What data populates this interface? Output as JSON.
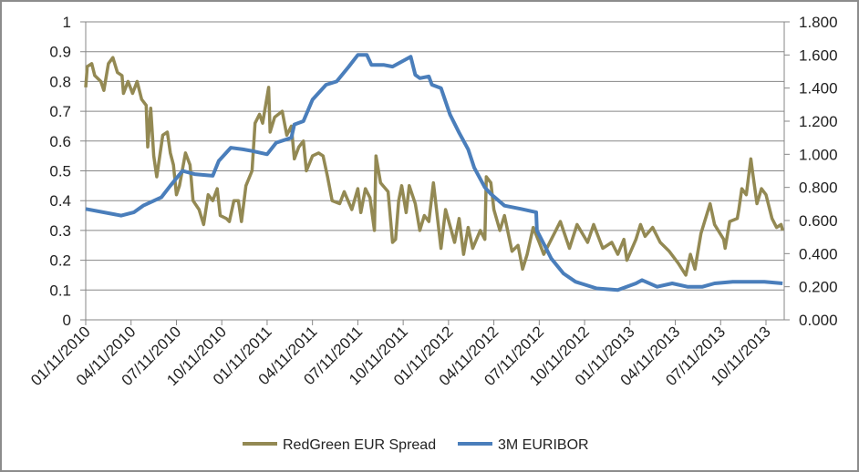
{
  "chart_data": {
    "type": "line",
    "title": "",
    "x_unit": "months since 01/11/2010",
    "x_tick_labels": [
      "01/11/2010",
      "04/11/2010",
      "07/11/2010",
      "10/11/2010",
      "01/11/2011",
      "04/11/2011",
      "07/11/2011",
      "10/11/2011",
      "01/11/2012",
      "04/11/2012",
      "07/11/2012",
      "10/11/2012",
      "01/11/2013",
      "04/11/2013",
      "07/11/2013",
      "10/11/2013"
    ],
    "x_tick_step_months": 3,
    "xlim": [
      0,
      46.2
    ],
    "left_axis": {
      "ylim": [
        0,
        1
      ],
      "step": 0.1,
      "tick_labels": [
        "0",
        "0.1",
        "0.2",
        "0.3",
        "0.4",
        "0.5",
        "0.6",
        "0.7",
        "0.8",
        "0.9",
        "1"
      ]
    },
    "right_axis": {
      "ylim": [
        0,
        1.8
      ],
      "step": 0.2,
      "tick_labels": [
        "0.000",
        "0.200",
        "0.400",
        "0.600",
        "0.800",
        "1.000",
        "1.200",
        "1.400",
        "1.600",
        "1.800"
      ]
    },
    "grid": true,
    "legend_position": "bottom",
    "series": [
      {
        "name": "RedGreen EUR Spread",
        "axis": "left",
        "color": "#938953",
        "points": [
          [
            0,
            0.78
          ],
          [
            0.1,
            0.85
          ],
          [
            0.4,
            0.86
          ],
          [
            0.6,
            0.82
          ],
          [
            1.0,
            0.8
          ],
          [
            1.2,
            0.77
          ],
          [
            1.5,
            0.86
          ],
          [
            1.8,
            0.88
          ],
          [
            2.1,
            0.83
          ],
          [
            2.4,
            0.82
          ],
          [
            2.5,
            0.76
          ],
          [
            2.8,
            0.8
          ],
          [
            3.1,
            0.76
          ],
          [
            3.4,
            0.8
          ],
          [
            3.7,
            0.74
          ],
          [
            4.0,
            0.72
          ],
          [
            4.1,
            0.58
          ],
          [
            4.3,
            0.71
          ],
          [
            4.5,
            0.55
          ],
          [
            4.7,
            0.48
          ],
          [
            4.9,
            0.55
          ],
          [
            5.1,
            0.62
          ],
          [
            5.4,
            0.63
          ],
          [
            5.6,
            0.56
          ],
          [
            5.8,
            0.52
          ],
          [
            6.0,
            0.42
          ],
          [
            6.2,
            0.45
          ],
          [
            6.6,
            0.56
          ],
          [
            6.9,
            0.52
          ],
          [
            7.1,
            0.4
          ],
          [
            7.5,
            0.37
          ],
          [
            7.8,
            0.32
          ],
          [
            8.1,
            0.42
          ],
          [
            8.4,
            0.4
          ],
          [
            8.7,
            0.44
          ],
          [
            8.9,
            0.35
          ],
          [
            9.3,
            0.34
          ],
          [
            9.5,
            0.33
          ],
          [
            9.8,
            0.4
          ],
          [
            10.1,
            0.4
          ],
          [
            10.3,
            0.33
          ],
          [
            10.6,
            0.45
          ],
          [
            11.0,
            0.5
          ],
          [
            11.2,
            0.66
          ],
          [
            11.5,
            0.69
          ],
          [
            11.7,
            0.66
          ],
          [
            12.1,
            0.78
          ],
          [
            12.2,
            0.63
          ],
          [
            12.5,
            0.68
          ],
          [
            13.0,
            0.7
          ],
          [
            13.3,
            0.62
          ],
          [
            13.6,
            0.65
          ],
          [
            13.8,
            0.54
          ],
          [
            14.1,
            0.58
          ],
          [
            14.4,
            0.6
          ],
          [
            14.6,
            0.5
          ],
          [
            15.0,
            0.55
          ],
          [
            15.4,
            0.56
          ],
          [
            15.7,
            0.55
          ],
          [
            16.0,
            0.48
          ],
          [
            16.3,
            0.4
          ],
          [
            16.8,
            0.39
          ],
          [
            17.1,
            0.43
          ],
          [
            17.6,
            0.37
          ],
          [
            18.0,
            0.44
          ],
          [
            18.2,
            0.36
          ],
          [
            18.5,
            0.44
          ],
          [
            18.8,
            0.41
          ],
          [
            19.1,
            0.3
          ],
          [
            19.2,
            0.55
          ],
          [
            19.5,
            0.46
          ],
          [
            20.0,
            0.43
          ],
          [
            20.3,
            0.26
          ],
          [
            20.5,
            0.27
          ],
          [
            20.7,
            0.4
          ],
          [
            20.9,
            0.45
          ],
          [
            21.2,
            0.36
          ],
          [
            21.4,
            0.45
          ],
          [
            21.8,
            0.39
          ],
          [
            22.1,
            0.3
          ],
          [
            22.4,
            0.35
          ],
          [
            22.7,
            0.33
          ],
          [
            23.0,
            0.46
          ],
          [
            23.5,
            0.24
          ],
          [
            23.8,
            0.37
          ],
          [
            24.4,
            0.26
          ],
          [
            24.7,
            0.34
          ],
          [
            25.0,
            0.22
          ],
          [
            25.3,
            0.31
          ],
          [
            25.6,
            0.24
          ],
          [
            26.1,
            0.3
          ],
          [
            26.4,
            0.27
          ],
          [
            26.5,
            0.48
          ],
          [
            26.8,
            0.46
          ],
          [
            27.0,
            0.37
          ],
          [
            27.4,
            0.3
          ],
          [
            27.7,
            0.35
          ],
          [
            28.2,
            0.23
          ],
          [
            28.6,
            0.25
          ],
          [
            28.9,
            0.17
          ],
          [
            29.2,
            0.22
          ],
          [
            29.6,
            0.31
          ],
          [
            30.0,
            0.26
          ],
          [
            30.3,
            0.22
          ],
          [
            30.8,
            0.27
          ],
          [
            31.4,
            0.33
          ],
          [
            32.0,
            0.24
          ],
          [
            32.5,
            0.32
          ],
          [
            33.2,
            0.26
          ],
          [
            33.6,
            0.32
          ],
          [
            34.2,
            0.24
          ],
          [
            34.8,
            0.26
          ],
          [
            35.2,
            0.22
          ],
          [
            35.6,
            0.27
          ],
          [
            35.8,
            0.2
          ],
          [
            36.4,
            0.27
          ],
          [
            36.7,
            0.32
          ],
          [
            37.0,
            0.28
          ],
          [
            37.5,
            0.31
          ],
          [
            38.0,
            0.26
          ],
          [
            38.6,
            0.23
          ],
          [
            39.2,
            0.19
          ],
          [
            39.7,
            0.15
          ],
          [
            40.0,
            0.22
          ],
          [
            40.3,
            0.17
          ],
          [
            40.7,
            0.29
          ],
          [
            41.3,
            0.39
          ],
          [
            41.6,
            0.32
          ],
          [
            42.2,
            0.27
          ],
          [
            42.3,
            0.24
          ],
          [
            42.6,
            0.33
          ],
          [
            43.1,
            0.34
          ],
          [
            43.2,
            0.37
          ],
          [
            43.4,
            0.44
          ],
          [
            43.7,
            0.42
          ],
          [
            44.0,
            0.54
          ],
          [
            44.1,
            0.5
          ],
          [
            44.4,
            0.39
          ],
          [
            44.7,
            0.44
          ],
          [
            45.0,
            0.42
          ],
          [
            45.4,
            0.34
          ],
          [
            45.7,
            0.31
          ],
          [
            46.0,
            0.32
          ],
          [
            46.1,
            0.3
          ]
        ]
      },
      {
        "name": "3M EURIBOR",
        "axis": "right",
        "color": "#4A7EBB",
        "points": [
          [
            0,
            0.67
          ],
          [
            2.35,
            0.63
          ],
          [
            3.2,
            0.65
          ],
          [
            3.8,
            0.69
          ],
          [
            5.0,
            0.74
          ],
          [
            5.6,
            0.81
          ],
          [
            6.4,
            0.9
          ],
          [
            7.2,
            0.88
          ],
          [
            8.4,
            0.87
          ],
          [
            8.8,
            0.96
          ],
          [
            9.6,
            1.04
          ],
          [
            10.4,
            1.03
          ],
          [
            11.0,
            1.02
          ],
          [
            12.0,
            1.0
          ],
          [
            12.6,
            1.07
          ],
          [
            13.6,
            1.1
          ],
          [
            13.8,
            1.18
          ],
          [
            14.4,
            1.2
          ],
          [
            15.0,
            1.33
          ],
          [
            15.9,
            1.42
          ],
          [
            16.6,
            1.44
          ],
          [
            17.4,
            1.53
          ],
          [
            18.0,
            1.6
          ],
          [
            18.6,
            1.6
          ],
          [
            18.9,
            1.54
          ],
          [
            19.7,
            1.54
          ],
          [
            20.3,
            1.53
          ],
          [
            21.5,
            1.59
          ],
          [
            21.8,
            1.48
          ],
          [
            22.1,
            1.46
          ],
          [
            22.7,
            1.47
          ],
          [
            22.9,
            1.42
          ],
          [
            23.5,
            1.4
          ],
          [
            24.1,
            1.24
          ],
          [
            24.7,
            1.13
          ],
          [
            25.3,
            1.03
          ],
          [
            25.7,
            0.92
          ],
          [
            26.4,
            0.8
          ],
          [
            26.8,
            0.76
          ],
          [
            27.7,
            0.69
          ],
          [
            28.8,
            0.67
          ],
          [
            29.8,
            0.65
          ],
          [
            29.85,
            0.54
          ],
          [
            30.8,
            0.37
          ],
          [
            31.6,
            0.28
          ],
          [
            32.4,
            0.23
          ],
          [
            33.8,
            0.19
          ],
          [
            35.2,
            0.18
          ],
          [
            36.4,
            0.22
          ],
          [
            36.8,
            0.24
          ],
          [
            37.8,
            0.2
          ],
          [
            38.8,
            0.22
          ],
          [
            39.8,
            0.2
          ],
          [
            40.8,
            0.2
          ],
          [
            41.6,
            0.22
          ],
          [
            42.8,
            0.23
          ],
          [
            44.9,
            0.23
          ],
          [
            46.1,
            0.22
          ]
        ]
      }
    ]
  }
}
